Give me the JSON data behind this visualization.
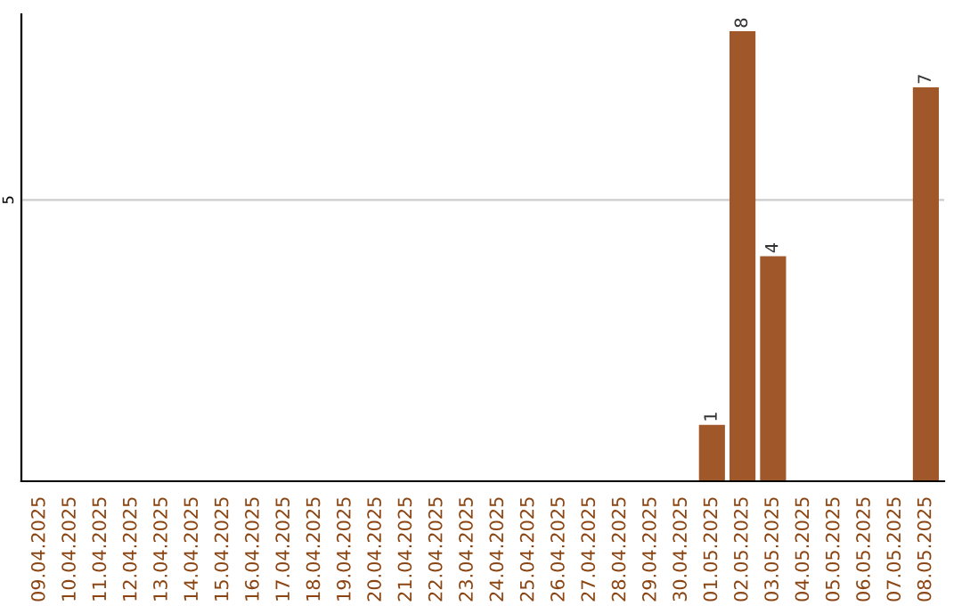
{
  "chart_data": {
    "type": "bar",
    "categories": [
      "09.04.2025",
      "10.04.2025",
      "11.04.2025",
      "12.04.2025",
      "13.04.2025",
      "14.04.2025",
      "15.04.2025",
      "16.04.2025",
      "17.04.2025",
      "18.04.2025",
      "19.04.2025",
      "20.04.2025",
      "21.04.2025",
      "22.04.2025",
      "23.04.2025",
      "24.04.2025",
      "25.04.2025",
      "26.04.2025",
      "27.04.2025",
      "28.04.2025",
      "29.04.2025",
      "30.04.2025",
      "01.05.2025",
      "02.05.2025",
      "03.05.2025",
      "04.05.2025",
      "05.05.2025",
      "06.05.2025",
      "07.05.2025",
      "08.05.2025"
    ],
    "values": [
      null,
      null,
      null,
      null,
      null,
      null,
      null,
      null,
      null,
      null,
      null,
      null,
      null,
      null,
      null,
      null,
      null,
      null,
      null,
      null,
      null,
      null,
      1,
      8,
      4,
      null,
      null,
      null,
      null,
      7
    ],
    "color": "#a0572a",
    "ylim": [
      0,
      8.3
    ],
    "yticks": [
      5
    ],
    "grid": "y",
    "data_labels": true
  }
}
